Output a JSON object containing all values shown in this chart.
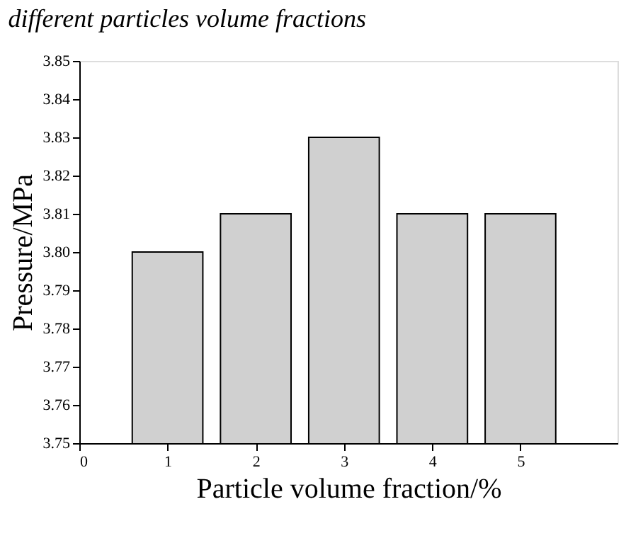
{
  "chart_data": {
    "type": "bar",
    "title": "different particles volume fractions",
    "xlabel": "Particle volume fraction/%",
    "ylabel": "Pressure/MPa",
    "x": [
      1,
      2,
      3,
      4,
      5
    ],
    "values": [
      3.8,
      3.81,
      3.83,
      3.81,
      3.81
    ],
    "color": "#d0d0d0",
    "xlim": [
      0,
      6.1
    ],
    "xticks": [
      0,
      1,
      2,
      3,
      4,
      5
    ],
    "ylim": [
      3.75,
      3.85
    ],
    "yticks": [
      3.75,
      3.76,
      3.77,
      3.78,
      3.79,
      {
        "value": 3.8,
        "label": "3.80"
      },
      3.81,
      3.82,
      3.83,
      3.84,
      3.85
    ],
    "grid": false
  }
}
